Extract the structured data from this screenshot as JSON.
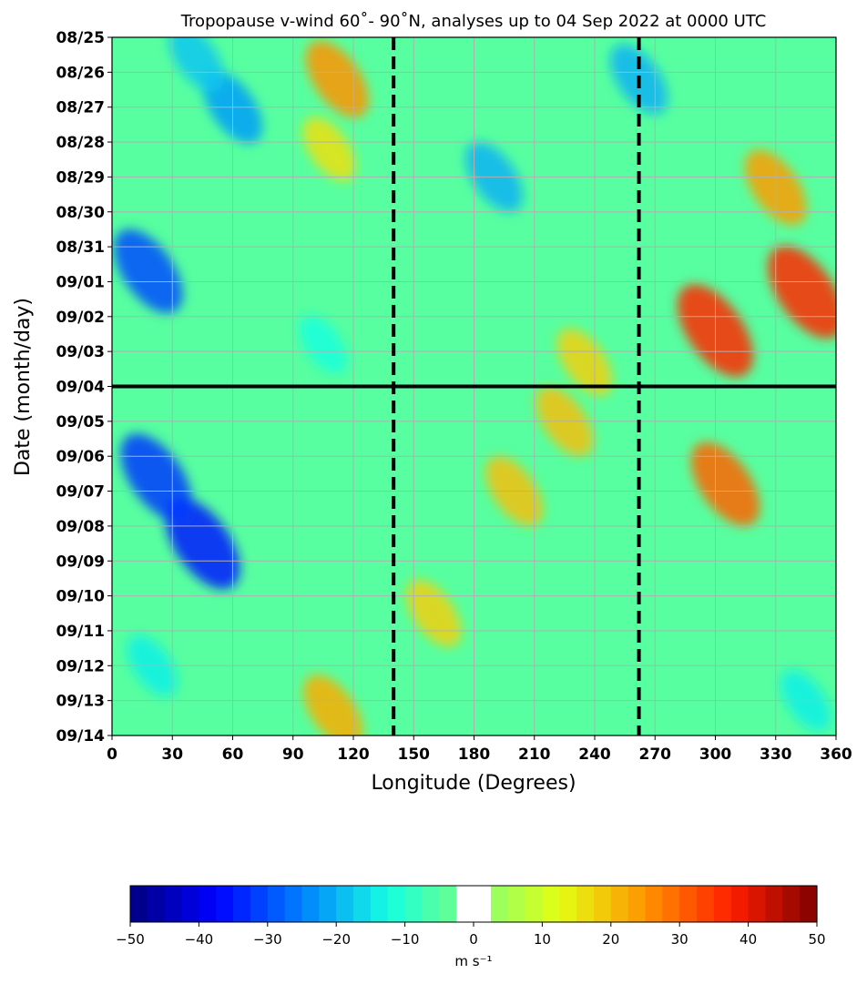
{
  "chart_data": {
    "type": "heatmap",
    "title": "Tropopause v-wind 60˚- 90˚N, analyses up to 04 Sep 2022 at 0000 UTC",
    "xlabel": "Longitude (Degrees)",
    "ylabel": "Date (month/day)",
    "xlim": [
      0,
      360
    ],
    "x_ticks": [
      "0",
      "30",
      "60",
      "90",
      "120",
      "150",
      "180",
      "210",
      "240",
      "270",
      "300",
      "330",
      "360"
    ],
    "y_ticks": [
      "08/25",
      "08/26",
      "08/27",
      "08/28",
      "08/29",
      "08/30",
      "08/31",
      "09/01",
      "09/02",
      "09/03",
      "09/04",
      "09/05",
      "09/06",
      "09/07",
      "09/08",
      "09/09",
      "09/10",
      "09/11",
      "09/12",
      "09/13",
      "09/14"
    ],
    "y_direction": "date increases downward",
    "grid": true,
    "analysis_line_date": "09/04",
    "reference_longitudes": [
      140,
      262
    ],
    "features": [
      {
        "lon": 45,
        "date_index": 14.5,
        "value": -35
      },
      {
        "lon": 22,
        "date_index": 12.6,
        "value": -32
      },
      {
        "lon": 18,
        "date_index": 6.7,
        "value": -30
      },
      {
        "lon": 60,
        "date_index": 2.0,
        "value": -22
      },
      {
        "lon": 42,
        "date_index": 0.6,
        "value": -18
      },
      {
        "lon": 190,
        "date_index": 4.0,
        "value": -20
      },
      {
        "lon": 262,
        "date_index": 1.2,
        "value": -20
      },
      {
        "lon": 20,
        "date_index": 18.0,
        "value": -14
      },
      {
        "lon": 345,
        "date_index": 19.0,
        "value": -14
      },
      {
        "lon": 105,
        "date_index": 8.8,
        "value": -12
      },
      {
        "lon": 300,
        "date_index": 8.4,
        "value": 36
      },
      {
        "lon": 345,
        "date_index": 7.3,
        "value": 36
      },
      {
        "lon": 305,
        "date_index": 12.8,
        "value": 30
      },
      {
        "lon": 112,
        "date_index": 1.2,
        "value": 25
      },
      {
        "lon": 225,
        "date_index": 11.0,
        "value": 20
      },
      {
        "lon": 200,
        "date_index": 13.0,
        "value": 20
      },
      {
        "lon": 110,
        "date_index": 19.3,
        "value": 22
      },
      {
        "lon": 330,
        "date_index": 4.3,
        "value": 24
      },
      {
        "lon": 160,
        "date_index": 16.5,
        "value": 18
      },
      {
        "lon": 235,
        "date_index": 9.3,
        "value": 18
      },
      {
        "lon": 108,
        "date_index": 3.2,
        "value": 16
      }
    ],
    "colorbar": {
      "range": [
        -50,
        50
      ],
      "ticks": [
        "−50",
        "−40",
        "−30",
        "−20",
        "−10",
        "0",
        "10",
        "20",
        "30",
        "40",
        "50"
      ],
      "label": "m s⁻¹",
      "white_band": [
        -2.5,
        2.5
      ],
      "levels": [
        {
          "value": -50,
          "color": "#00007f"
        },
        {
          "value": -37.5,
          "color": "#0000ff"
        },
        {
          "value": -25,
          "color": "#0080ff"
        },
        {
          "value": -12.5,
          "color": "#15ffe1"
        },
        {
          "value": 0,
          "color": "#7dff7a"
        },
        {
          "value": 12.5,
          "color": "#e4ff13"
        },
        {
          "value": 25,
          "color": "#ff9400"
        },
        {
          "value": 37.5,
          "color": "#ff1e00"
        },
        {
          "value": 50,
          "color": "#7f0000"
        }
      ]
    }
  }
}
